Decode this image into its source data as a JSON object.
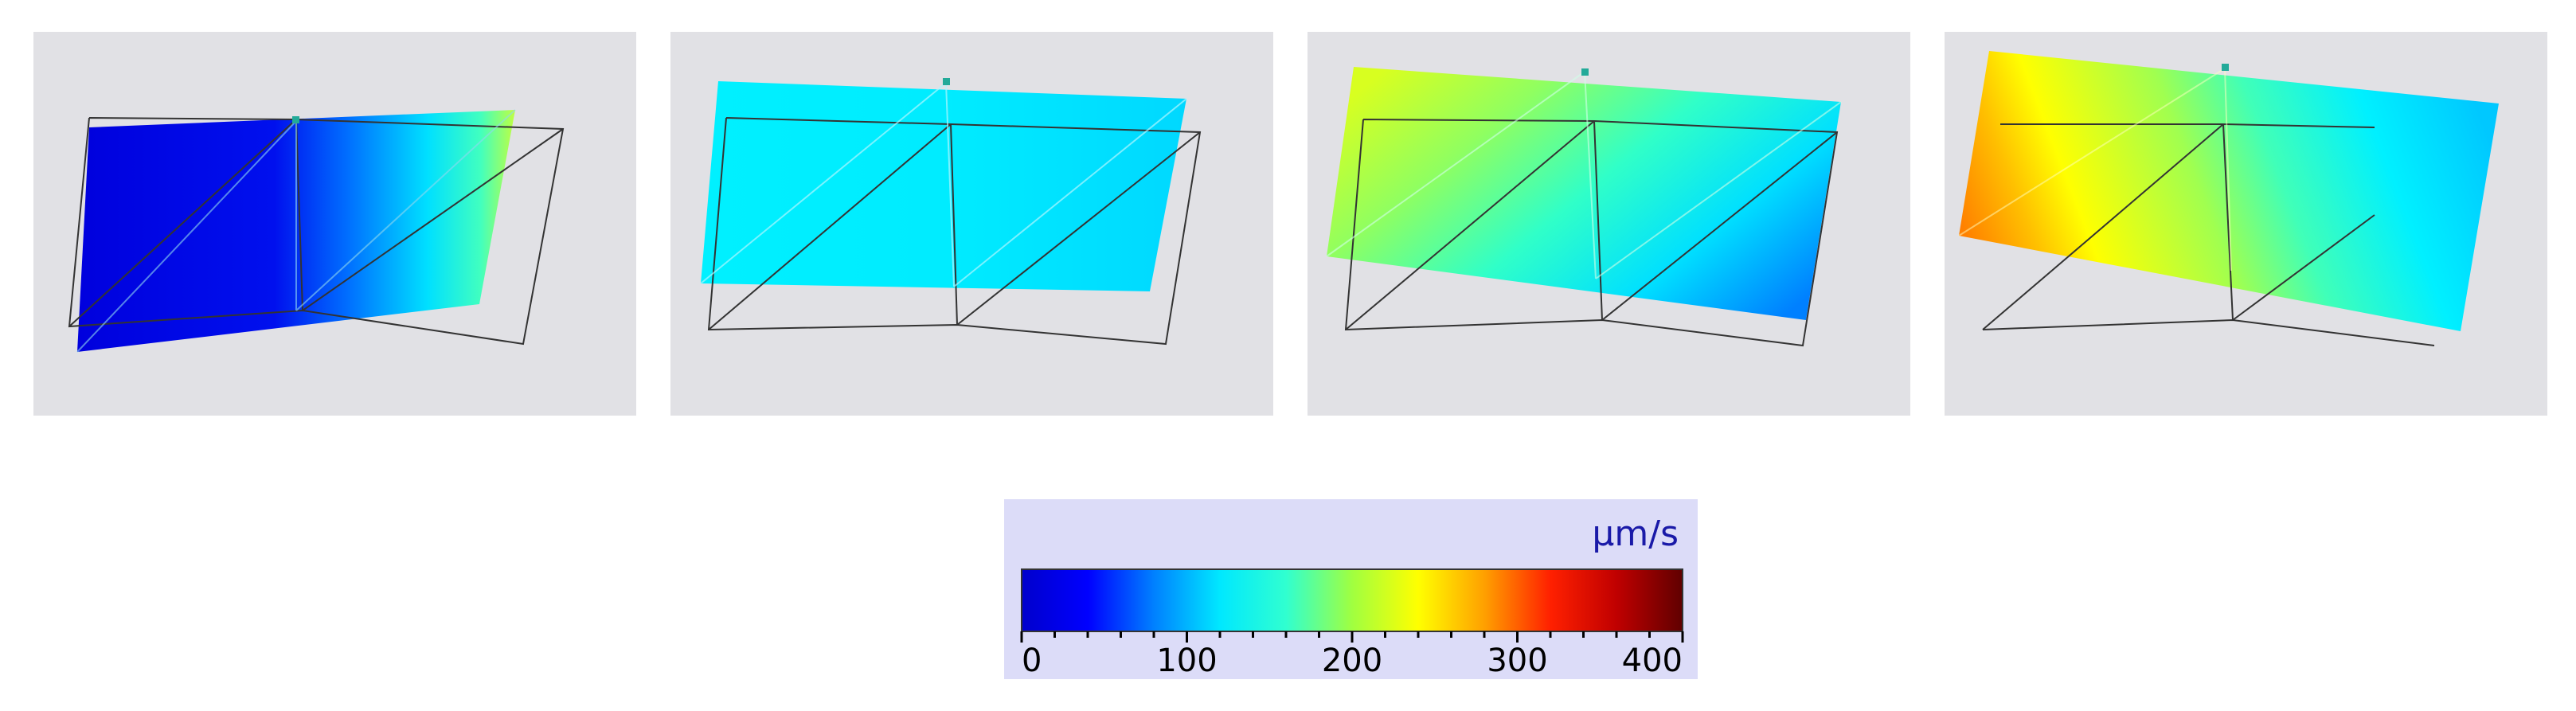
{
  "figure": {
    "panels": [
      {
        "id": 1,
        "shows": "low velocity, blue to yellow-green"
      },
      {
        "id": 2,
        "shows": "uniform cyan"
      },
      {
        "id": 3,
        "shows": "yellow-green to blue"
      },
      {
        "id": 4,
        "shows": "orange to cyan"
      }
    ],
    "colorbar": {
      "unit": "μm/s",
      "min": 0,
      "max": 400,
      "tick_labels": [
        "0",
        "100",
        "200",
        "300",
        "400"
      ],
      "colormap": [
        "#0000cc",
        "#0000ff",
        "#0080ff",
        "#00e8ff",
        "#30ffd0",
        "#a0ff40",
        "#ffff00",
        "#ffa000",
        "#ff2000",
        "#c00000",
        "#600000"
      ]
    }
  }
}
